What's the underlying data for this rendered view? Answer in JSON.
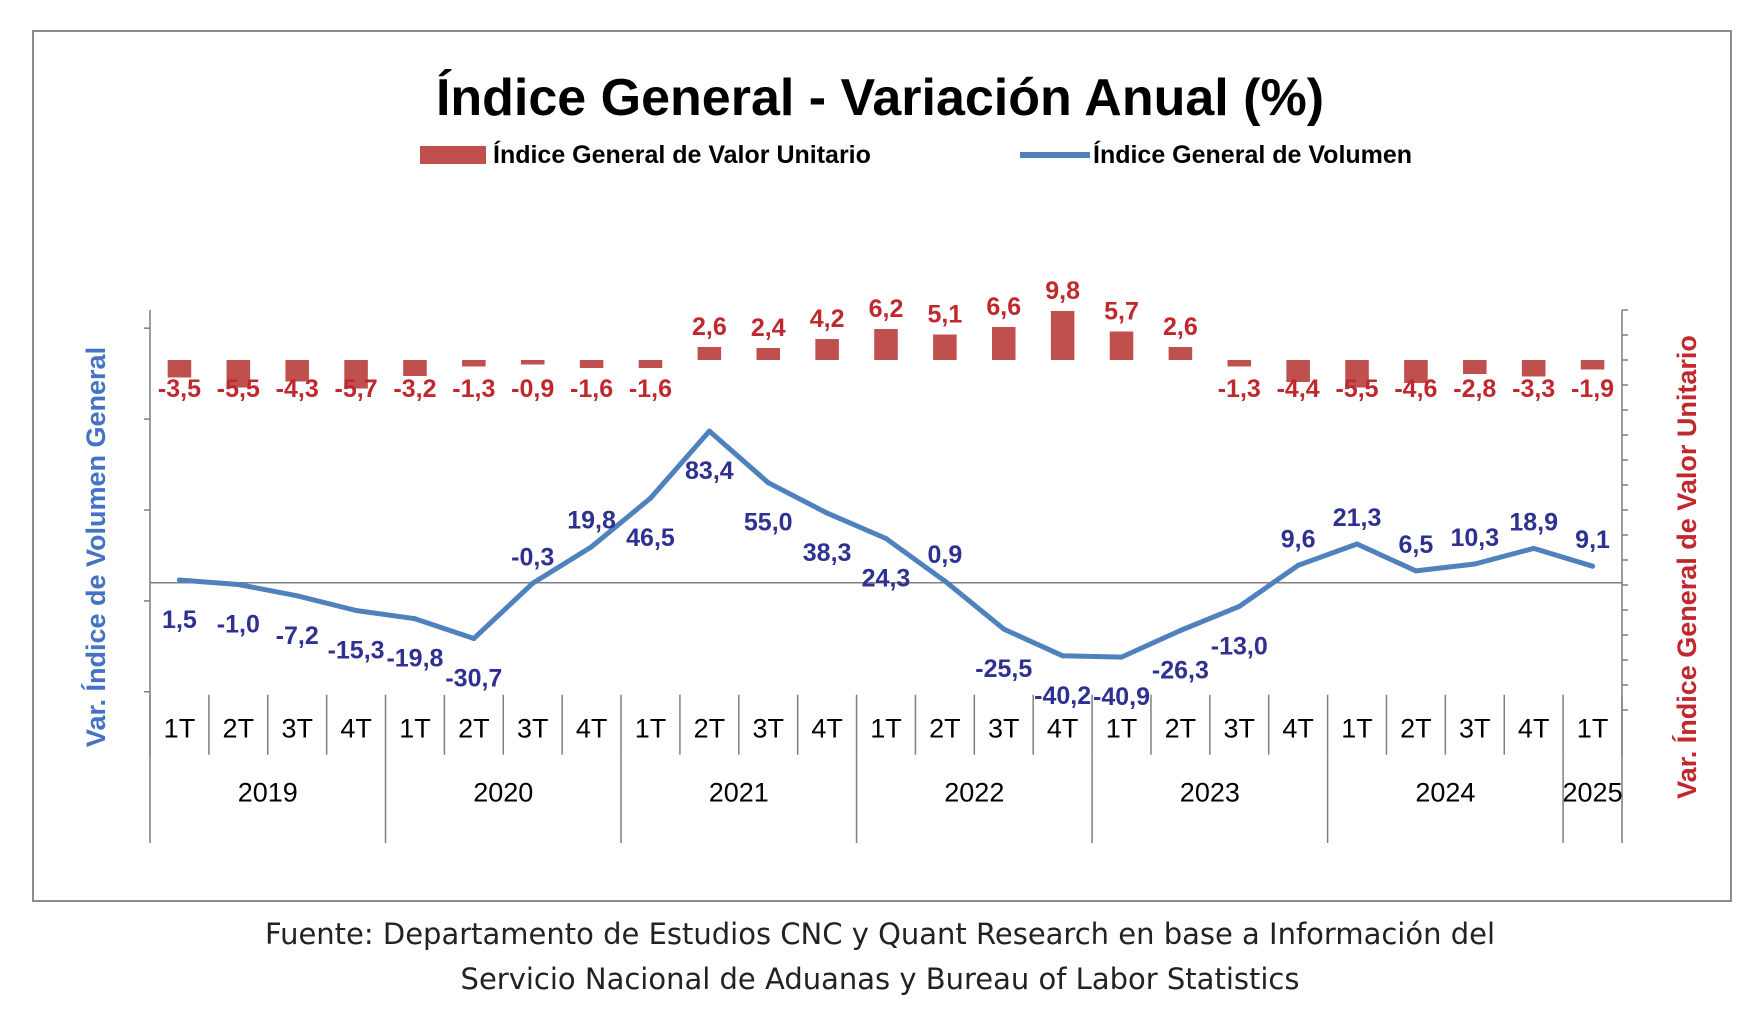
{
  "chart_data": {
    "type": "bar+line",
    "title": "Índice General - Variación Anual (%)",
    "categories": [
      "1T",
      "2T",
      "3T",
      "4T",
      "1T",
      "2T",
      "3T",
      "4T",
      "1T",
      "2T",
      "3T",
      "4T",
      "1T",
      "2T",
      "3T",
      "4T",
      "1T",
      "2T",
      "3T",
      "4T",
      "1T",
      "2T",
      "3T",
      "4T",
      "1T"
    ],
    "years": [
      {
        "label": "2019",
        "quarters": 4
      },
      {
        "label": "2020",
        "quarters": 4
      },
      {
        "label": "2021",
        "quarters": 4
      },
      {
        "label": "2022",
        "quarters": 4
      },
      {
        "label": "2023",
        "quarters": 4
      },
      {
        "label": "2024",
        "quarters": 4
      },
      {
        "label": "2025",
        "quarters": 1
      }
    ],
    "series": [
      {
        "name": "Índice General de Valor Unitario",
        "type": "bar",
        "axis": "right",
        "color": "#c0504d",
        "values": [
          -3.5,
          -5.5,
          -4.3,
          -5.7,
          -3.2,
          -1.3,
          -0.9,
          -1.6,
          -1.6,
          2.6,
          2.4,
          4.2,
          6.2,
          5.1,
          6.6,
          9.8,
          5.7,
          2.6,
          -1.3,
          -4.4,
          -5.5,
          -4.6,
          -2.8,
          -3.3,
          -1.9
        ],
        "labels": [
          "-3,5",
          "-5,5",
          "-4,3",
          "-5,7",
          "-3,2",
          "-1,3",
          "-0,9",
          "-1,6",
          "-1,6",
          "2,6",
          "2,4",
          "4,2",
          "6,2",
          "5,1",
          "6,6",
          "9,8",
          "5,7",
          "2,6",
          "-1,3",
          "-4,4",
          "-5,5",
          "-4,6",
          "-2,8",
          "-3,3",
          "-1,9"
        ]
      },
      {
        "name": "Índice General de Volumen",
        "type": "line",
        "axis": "left",
        "color": "#4f81bd",
        "values": [
          1.5,
          -1.0,
          -7.2,
          -15.3,
          -19.8,
          -30.7,
          -0.3,
          19.8,
          46.5,
          83.4,
          55.0,
          38.3,
          24.3,
          0.9,
          -25.5,
          -40.2,
          -40.9,
          -26.3,
          -13.0,
          9.6,
          21.3,
          6.5,
          10.3,
          18.9,
          9.1
        ],
        "labels": [
          "1,5",
          "-1,0",
          "-7,2",
          "-15,3",
          "-19,8",
          "-30,7",
          "-0,3",
          "19,8",
          "46,5",
          "83,4",
          "55,0",
          "38,3",
          "24,3",
          "0,9",
          "-25,5",
          "-40,2",
          "-40,9",
          "-26,3",
          "-13,0",
          "9,6",
          "21,3",
          "6,5",
          "10,3",
          "18,9",
          "9,1"
        ]
      }
    ],
    "ylabel_left": "Var. Índice de Volumen General",
    "ylabel_right": "Var. Índice General de Valor Unitario",
    "ylim_left": [
      -70,
      150
    ],
    "ylim_right": [
      -70,
      10
    ],
    "grid": false,
    "legend": "top-center",
    "colors": {
      "bar": "#c0504d",
      "line": "#4f81bd",
      "line_labels": "#2e3192",
      "bar_labels": "#c0282d",
      "left_axis_title": "#4472c4",
      "right_axis_title": "#c0282d"
    }
  },
  "footer": {
    "line1": "Fuente: Departamento de Estudios CNC y Quant Research en base a Información del",
    "line2": "Servicio Nacional de Aduanas y Bureau of Labor Statistics"
  }
}
